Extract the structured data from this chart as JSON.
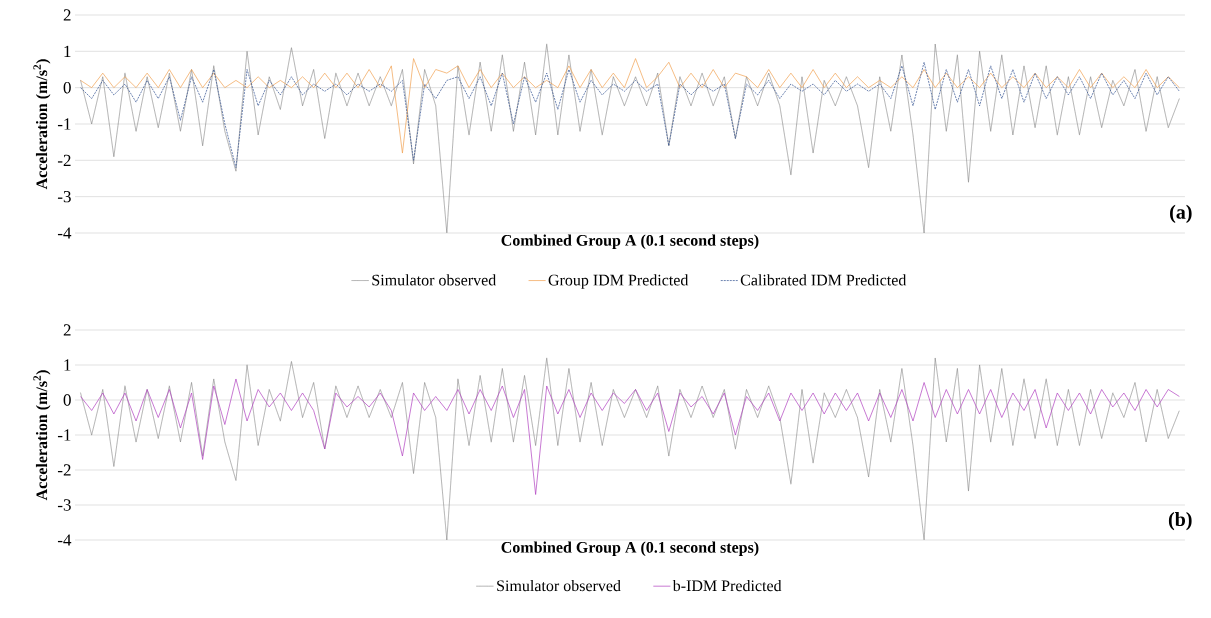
{
  "chart_data": [
    {
      "type": "line",
      "xlabel": "Combined Group A (0.1 second steps)",
      "ylabel": "Acceleration (m/s$^{2}$)",
      "annotations": [
        "(a)"
      ],
      "categories": [
        null,
        null,
        null,
        null,
        null,
        null,
        null,
        null,
        null,
        null,
        null,
        null,
        null,
        null,
        null,
        null,
        null,
        null,
        null,
        null,
        null,
        null,
        null,
        null,
        null,
        null,
        null,
        null,
        null,
        null,
        null,
        null,
        null,
        null,
        null,
        null,
        null,
        null,
        null,
        null,
        null,
        null,
        null,
        null,
        null,
        null,
        null,
        null,
        null,
        null,
        null,
        null,
        null,
        null,
        null,
        null,
        null,
        null,
        null,
        null,
        null,
        null,
        null,
        null,
        null,
        null,
        null,
        null,
        null,
        null,
        null,
        null,
        null,
        null,
        null,
        null,
        null,
        null,
        null,
        null,
        null,
        null,
        null,
        null,
        null,
        null,
        null,
        null,
        null,
        null,
        null,
        null,
        null,
        null,
        null,
        null,
        null,
        null,
        null,
        null
      ],
      "series": [
        {
          "name": "Simulator observed",
          "color": "#7f7f7f",
          "line_style": "dotted",
          "values": [
            0.2,
            -1.0,
            0.3,
            -1.9,
            0.4,
            -1.2,
            0.3,
            -1.1,
            0.4,
            -1.2,
            0.5,
            -1.6,
            0.6,
            -1.2,
            -2.3,
            1.0,
            -1.3,
            0.3,
            -0.6,
            1.1,
            -0.5,
            0.5,
            -1.4,
            0.4,
            -0.5,
            0.4,
            -0.5,
            0.3,
            -0.5,
            0.5,
            -2.1,
            0.5,
            -0.5,
            -4,
            0.6,
            -1.3,
            0.7,
            -1.2,
            0.9,
            -1.2,
            0.7,
            -1.3,
            1.2,
            -1.3,
            0.9,
            -1.2,
            0.5,
            -1.3,
            0.3,
            -0.5,
            0.3,
            -0.5,
            0.4,
            -1.6,
            0.3,
            -0.5,
            0.4,
            -0.5,
            0.3,
            -1.4,
            0.3,
            -0.5,
            0.4,
            -0.5,
            -2.4,
            0.3,
            -1.8,
            0.2,
            -0.5,
            0.3,
            -0.5,
            -2.2,
            0.3,
            -1.2,
            0.9,
            -1.3,
            -4,
            1.2,
            -1.2,
            0.9,
            -2.6,
            1.0,
            -1.2,
            0.9,
            -1.3,
            0.6,
            -1.1,
            0.6,
            -1.3,
            0.3,
            -1.3,
            0.3,
            -1.1,
            0.2,
            -0.5,
            0.5,
            -1.2,
            0.3,
            -1.1,
            -0.3
          ]
        },
        {
          "name": "Group IDM Predicted",
          "color": "#f0a050",
          "line_style": "solid",
          "values": [
            0.2,
            0,
            0.4,
            0,
            0.3,
            0,
            0.4,
            0,
            0.5,
            0,
            0.5,
            0,
            0.4,
            0,
            0.2,
            0,
            0.3,
            0,
            0.2,
            0,
            0.3,
            0,
            0.4,
            0,
            0.4,
            0,
            0.5,
            0,
            0.6,
            -1.8,
            0.8,
            0,
            0.5,
            0.4,
            0.6,
            0,
            0.5,
            0,
            0.4,
            0,
            0.3,
            0,
            0.2,
            0,
            0.6,
            0,
            0.5,
            0,
            0.4,
            0,
            0.8,
            0,
            0.3,
            0.7,
            0,
            0.4,
            0,
            0.5,
            0,
            0.4,
            0.3,
            0,
            0.5,
            0,
            0.4,
            0,
            0.5,
            0,
            0.4,
            0,
            0.3,
            0,
            0.2,
            0,
            0.3,
            0,
            0.5,
            0,
            0.4,
            0,
            0.3,
            0,
            0.4,
            0,
            0.3,
            0,
            0.4,
            0,
            0.3,
            0,
            0.5,
            0,
            0.4,
            0,
            0.3,
            0,
            0.5,
            0,
            0.3,
            0
          ]
        },
        {
          "name": "Calibrated IDM Predicted",
          "color": "#2f4f8f",
          "line_style": "dashed",
          "values": [
            0,
            -0.3,
            0.2,
            -0.2,
            0.1,
            -0.4,
            0.2,
            -0.3,
            0.3,
            -0.9,
            0.3,
            -0.4,
            0.5,
            -1.0,
            -2.2,
            0.5,
            -0.5,
            0.2,
            -0.2,
            0.3,
            -0.2,
            0.1,
            -0.1,
            0.1,
            -0.2,
            0.1,
            -0.1,
            0.1,
            -0.1,
            0.2,
            -2.0,
            0.1,
            -0.3,
            0.2,
            0.3,
            -0.3,
            0.3,
            -0.5,
            0.4,
            -1.0,
            0.3,
            -0.4,
            0.4,
            -0.6,
            0.5,
            -0.4,
            0.2,
            -0.2,
            0.1,
            -0.1,
            0.2,
            -0.1,
            0.1,
            -1.6,
            0.1,
            -0.2,
            0.1,
            -0.1,
            0.1,
            -1.4,
            0.1,
            -0.2,
            0.2,
            -0.3,
            0.1,
            -0.1,
            0.1,
            -0.2,
            0.2,
            -0.1,
            0.1,
            -0.1,
            0.1,
            -0.3,
            0.6,
            -0.5,
            0.7,
            -0.6,
            0.5,
            -0.4,
            0.5,
            -0.5,
            0.6,
            -0.3,
            0.5,
            -0.4,
            0.4,
            -0.3,
            0.3,
            -0.2,
            0.3,
            -0.3,
            0.4,
            -0.2,
            0.2,
            -0.3,
            0.4,
            -0.2,
            0.3,
            -0.1
          ]
        }
      ],
      "ylim": [
        -4,
        2
      ],
      "yticks": [
        -4,
        -3,
        -2,
        -1,
        0,
        1,
        2
      ],
      "grid": "y",
      "legend": "bottom",
      "tick_labels": "y",
      "marker": "none"
    },
    {
      "type": "line",
      "xlabel": "Combined Group A (0.1 second steps)",
      "ylabel": "Acceleration (m/s$^{2}$)",
      "annotations": [
        "(b)"
      ],
      "categories": [
        null,
        null,
        null,
        null,
        null,
        null,
        null,
        null,
        null,
        null,
        null,
        null,
        null,
        null,
        null,
        null,
        null,
        null,
        null,
        null,
        null,
        null,
        null,
        null,
        null,
        null,
        null,
        null,
        null,
        null,
        null,
        null,
        null,
        null,
        null,
        null,
        null,
        null,
        null,
        null,
        null,
        null,
        null,
        null,
        null,
        null,
        null,
        null,
        null,
        null,
        null,
        null,
        null,
        null,
        null,
        null,
        null,
        null,
        null,
        null,
        null,
        null,
        null,
        null,
        null,
        null,
        null,
        null,
        null,
        null,
        null,
        null,
        null,
        null,
        null,
        null,
        null,
        null,
        null,
        null,
        null,
        null,
        null,
        null,
        null,
        null,
        null,
        null,
        null,
        null,
        null,
        null,
        null,
        null,
        null,
        null,
        null,
        null,
        null,
        null
      ],
      "series": [
        {
          "name": "Simulator observed",
          "color": "#7f7f7f",
          "line_style": "dotted",
          "values": [
            0.2,
            -1.0,
            0.3,
            -1.9,
            0.4,
            -1.2,
            0.3,
            -1.1,
            0.4,
            -1.2,
            0.5,
            -1.6,
            0.6,
            -1.2,
            -2.3,
            1.0,
            -1.3,
            0.3,
            -0.6,
            1.1,
            -0.5,
            0.5,
            -1.4,
            0.4,
            -0.5,
            0.4,
            -0.5,
            0.3,
            -0.5,
            0.5,
            -2.1,
            0.5,
            -0.5,
            -4,
            0.6,
            -1.3,
            0.7,
            -1.2,
            0.9,
            -1.2,
            0.7,
            -1.3,
            1.2,
            -1.3,
            0.9,
            -1.2,
            0.5,
            -1.3,
            0.3,
            -0.5,
            0.3,
            -0.5,
            0.4,
            -1.6,
            0.3,
            -0.5,
            0.4,
            -0.5,
            0.3,
            -1.4,
            0.3,
            -0.5,
            0.4,
            -0.5,
            -2.4,
            0.3,
            -1.8,
            0.2,
            -0.5,
            0.3,
            -0.5,
            -2.2,
            0.3,
            -1.2,
            0.9,
            -1.3,
            -4,
            1.2,
            -1.2,
            0.9,
            -2.6,
            1.0,
            -1.2,
            0.9,
            -1.3,
            0.6,
            -1.1,
            0.6,
            -1.3,
            0.3,
            -1.3,
            0.3,
            -1.1,
            0.2,
            -0.5,
            0.5,
            -1.2,
            0.3,
            -1.1,
            -0.3
          ]
        },
        {
          "name": "b-IDM Predicted",
          "color": "#b040c0",
          "line_style": "solid",
          "values": [
            0.1,
            -0.3,
            0.2,
            -0.4,
            0.2,
            -0.6,
            0.3,
            -0.5,
            0.3,
            -0.8,
            0.2,
            -1.7,
            0.4,
            -0.7,
            0.6,
            -0.6,
            0.3,
            -0.2,
            0.2,
            -0.3,
            0.2,
            -0.3,
            -1.4,
            0.2,
            -0.2,
            0.1,
            -0.2,
            0.2,
            -0.3,
            -1.6,
            0.2,
            -0.3,
            0.1,
            -0.3,
            0.3,
            -0.4,
            0.3,
            -0.3,
            0.4,
            -0.5,
            0.3,
            -2.7,
            0.4,
            -0.4,
            0.3,
            -0.5,
            0.2,
            -0.3,
            0.2,
            -0.1,
            0.3,
            -0.3,
            0.2,
            -0.9,
            0.2,
            -0.2,
            0.1,
            -0.4,
            0.2,
            -1.0,
            0.1,
            -0.3,
            0.2,
            -0.6,
            0.2,
            -0.3,
            0.2,
            -0.4,
            0.2,
            -0.3,
            0.2,
            -0.6,
            0.2,
            -0.5,
            0.3,
            -0.6,
            0.5,
            -0.5,
            0.3,
            -0.4,
            0.3,
            -0.4,
            0.3,
            -0.5,
            0.2,
            -0.3,
            0.3,
            -0.8,
            0.2,
            -0.3,
            0.2,
            -0.4,
            0.3,
            -0.2,
            0.2,
            -0.3,
            0.3,
            -0.2,
            0.3,
            0.1
          ]
        }
      ],
      "ylim": [
        -4,
        2
      ],
      "yticks": [
        -4,
        -3,
        -2,
        -1,
        0,
        1,
        2
      ],
      "grid": "y",
      "legend": "bottom",
      "tick_labels": "y",
      "marker": "none"
    }
  ]
}
